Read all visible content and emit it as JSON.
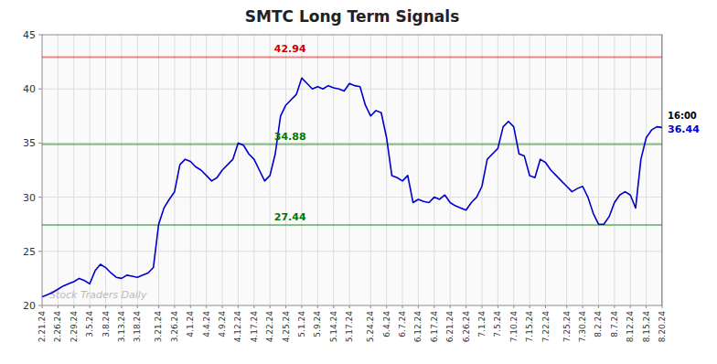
{
  "chart_data": {
    "type": "line",
    "title": "SMTC Long Term Signals",
    "watermark": "Stock Traders Daily",
    "color": "#0000cc",
    "grid": true,
    "ylim": [
      20,
      45
    ],
    "yticks": [
      20,
      25,
      30,
      35,
      40,
      45
    ],
    "hlines": [
      {
        "value": 42.94,
        "label": "42.94",
        "color": "#cc0000"
      },
      {
        "value": 34.88,
        "label": "34.88",
        "color": "#007700"
      },
      {
        "value": 27.44,
        "label": "27.44",
        "color": "#007700"
      }
    ],
    "annotations": [
      {
        "text": "16:00"
      },
      {
        "text": "36.44",
        "value": 36.44,
        "color": "#0000cc"
      }
    ],
    "categories": [
      "2.21.24",
      null,
      null,
      "2.26.24",
      null,
      null,
      "2.29.24",
      null,
      null,
      "3.5.24",
      null,
      null,
      "3.8.24",
      null,
      null,
      "3.13.24",
      null,
      null,
      "3.18.24",
      null,
      null,
      null,
      "3.21.24",
      null,
      null,
      "3.26.24",
      null,
      null,
      "4.1.24",
      null,
      null,
      "4.4.24",
      null,
      null,
      "4.9.24",
      null,
      null,
      "4.12.24",
      null,
      null,
      "4.17.24",
      null,
      null,
      "4.22.24",
      null,
      null,
      "4.25.24",
      null,
      null,
      "5.1.24",
      null,
      null,
      "5.9.24",
      null,
      null,
      "5.14.24",
      null,
      null,
      "5.17.24",
      null,
      null,
      null,
      "5.24.24",
      null,
      null,
      "6.4.24",
      null,
      null,
      "6.7.24",
      null,
      null,
      "6.12.24",
      null,
      null,
      "6.17.24",
      null,
      null,
      "6.21.24",
      null,
      null,
      "6.26.24",
      null,
      null,
      "7.1.24",
      null,
      null,
      "7.5.24",
      null,
      null,
      "7.10.24",
      null,
      null,
      "7.15.24",
      null,
      null,
      "7.22.24",
      null,
      null,
      null,
      "7.25.24",
      null,
      null,
      "7.30.24",
      null,
      null,
      "8.2.24",
      null,
      null,
      "8.7.24",
      null,
      null,
      "8.12.24",
      null,
      null,
      "8.15.24",
      null,
      null,
      "8.20.24"
    ],
    "values": [
      20.8,
      21.0,
      21.2,
      21.5,
      21.8,
      22.0,
      22.2,
      22.5,
      22.3,
      22.0,
      23.2,
      23.8,
      23.5,
      23.0,
      22.6,
      22.5,
      22.8,
      22.7,
      22.6,
      22.8,
      23.0,
      23.5,
      27.5,
      29.0,
      29.8,
      30.5,
      33.0,
      33.5,
      33.3,
      32.8,
      32.5,
      32.0,
      31.5,
      31.8,
      32.5,
      33.0,
      33.5,
      35.0,
      34.8,
      34.0,
      33.5,
      32.5,
      31.5,
      32.0,
      34.0,
      37.5,
      38.5,
      39.0,
      39.5,
      41.0,
      40.5,
      40.0,
      40.2,
      40.0,
      40.3,
      40.1,
      40.0,
      39.8,
      40.5,
      40.3,
      40.2,
      38.5,
      37.5,
      38.0,
      37.8,
      35.5,
      32.0,
      31.8,
      31.5,
      32.0,
      29.5,
      29.8,
      29.6,
      29.5,
      30.0,
      29.8,
      30.2,
      29.5,
      29.2,
      29.0,
      28.8,
      29.5,
      30.0,
      31.0,
      33.5,
      34.0,
      34.5,
      36.5,
      37.0,
      36.5,
      34.0,
      33.8,
      32.0,
      31.8,
      33.5,
      33.2,
      32.5,
      32.0,
      31.5,
      31.0,
      30.5,
      30.8,
      31.0,
      30.0,
      28.5,
      27.5,
      27.5,
      28.2,
      29.5,
      30.2,
      30.5,
      30.2,
      29.0,
      33.5,
      35.5,
      36.2,
      36.5,
      36.44
    ]
  }
}
